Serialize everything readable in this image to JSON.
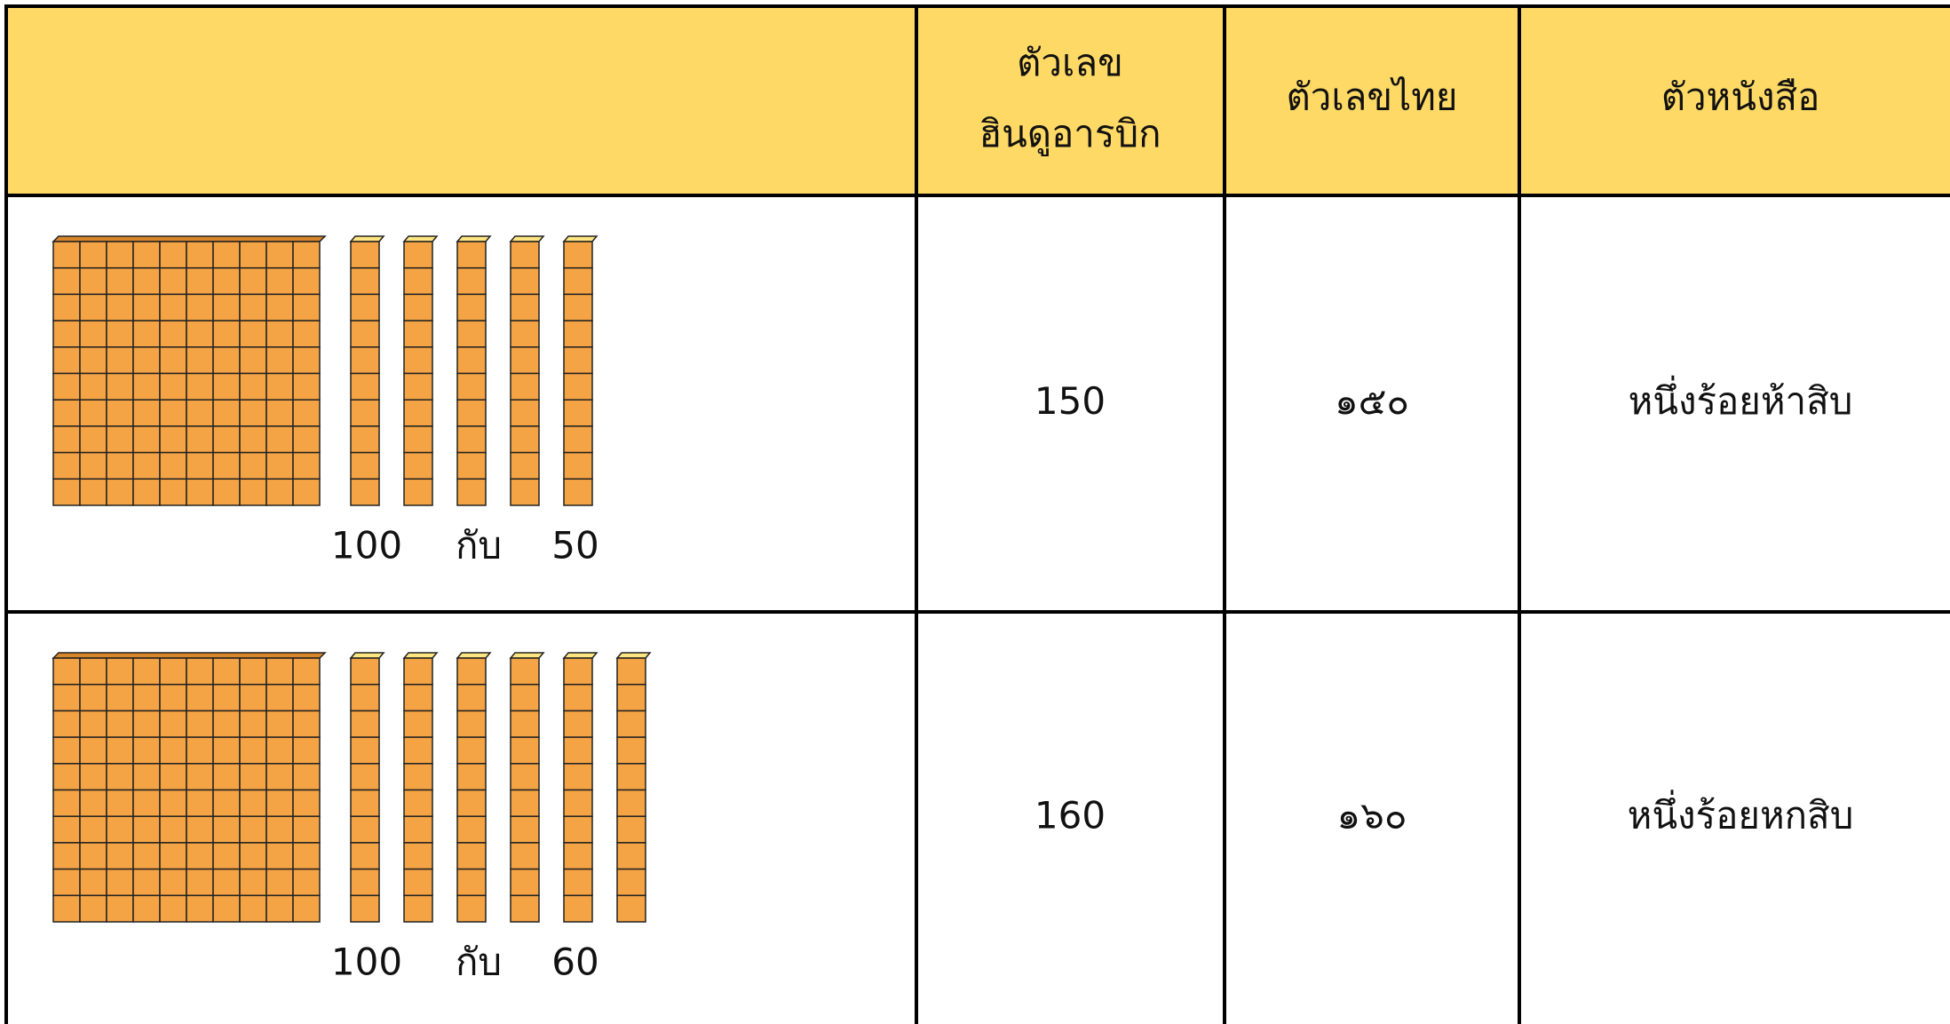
{
  "table": {
    "header": [
      "ตัวเลข\nฮินดูอารบิก",
      "ตัวเลขไทย",
      "ตัวหนังสือ"
    ],
    "rows": [
      {
        "blocks": {
          "hundreds": 100,
          "joiner": "กับ",
          "tens": 50
        },
        "arabic": 150,
        "thai": "๑๕๐",
        "words": "หนึ่งร้อยห้าสิบ"
      },
      {
        "blocks": {
          "hundreds": 100,
          "joiner": "กับ",
          "tens": 60
        },
        "arabic": 160,
        "thai": "๑๖๐",
        "words": "หนึ่งร้อยหกสิบ"
      }
    ]
  }
}
